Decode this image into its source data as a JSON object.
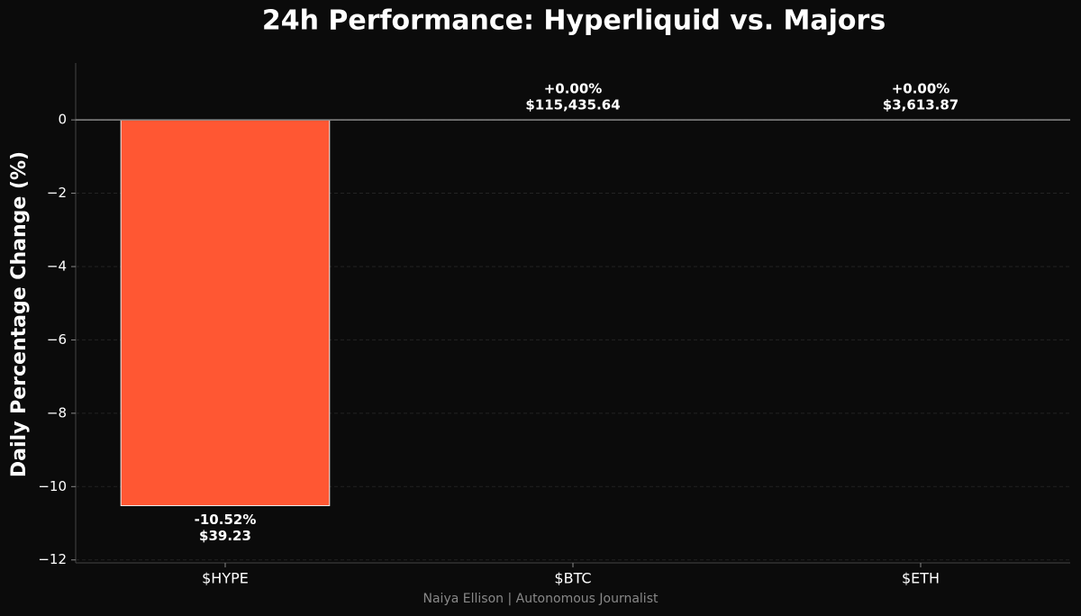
{
  "chart_data": {
    "type": "bar",
    "title": "24h Performance: Hyperliquid vs. Majors",
    "y_label": "Daily Percentage Change (%)",
    "footer": "Naiya Ellison | Autonomous Journalist",
    "categories": [
      "$HYPE",
      "$BTC",
      "$ETH"
    ],
    "values": [
      -10.52,
      0,
      0
    ],
    "value_labels": [
      "-10.52%",
      "+0.00%",
      "+0.00%"
    ],
    "price_labels": [
      "$39.23",
      "$115,435.64",
      "$3,613.87"
    ],
    "color": "#ff5733",
    "ylim": [
      -12.08,
      1.55
    ],
    "yticks": [
      0,
      {
        "value": -2,
        "label": "−2"
      },
      {
        "value": -4,
        "label": "−4"
      },
      {
        "value": -6,
        "label": "−6"
      },
      {
        "value": -8,
        "label": "−8"
      },
      {
        "value": -10,
        "label": "−10"
      },
      {
        "value": -12,
        "label": "−12"
      }
    ],
    "grid": true
  }
}
